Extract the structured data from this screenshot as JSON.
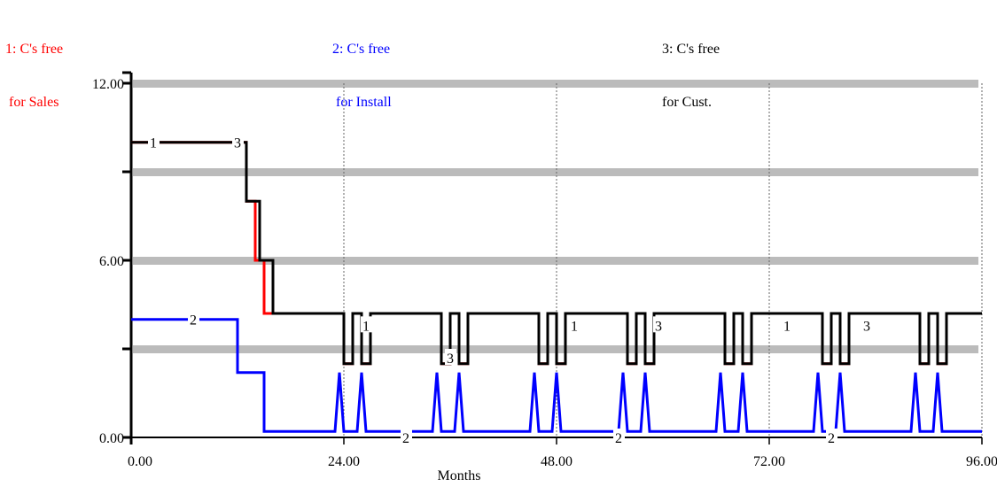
{
  "chart_data": {
    "type": "line",
    "xlabel": "Months",
    "ylabel": "",
    "xlim": [
      0,
      96
    ],
    "ylim": [
      0,
      12
    ],
    "x_ticks": [
      "0.00",
      "24.00",
      "48.00",
      "72.00",
      "96.00"
    ],
    "y_ticks": [
      "0.00",
      "6.00",
      "12.00"
    ],
    "grid": "vertical dashed lines at 24, 48, 72, 96",
    "legend": [
      {
        "id": "1",
        "line1": "1: C's free",
        "line2": " for Sales",
        "color": "#ff0000"
      },
      {
        "id": "2",
        "line1": "2: C's free",
        "line2": " for Install",
        "color": "#0000ff"
      },
      {
        "id": "3",
        "line1": "3: C's free",
        "line2": "for Cust.",
        "color": "#000000"
      }
    ],
    "series": [
      {
        "name": "1: C's free for Sales",
        "marker": "1",
        "color": "#ff0000",
        "points": [
          [
            0,
            10
          ],
          [
            13,
            10
          ],
          [
            13,
            8
          ],
          [
            14,
            8
          ],
          [
            14,
            6
          ],
          [
            15,
            6
          ],
          [
            15,
            4.2
          ],
          [
            24,
            4.2
          ],
          [
            24,
            2.5
          ],
          [
            25,
            2.5
          ],
          [
            25,
            4.2
          ],
          [
            26,
            4.2
          ],
          [
            26,
            2.5
          ],
          [
            27,
            2.5
          ],
          [
            27,
            4.2
          ],
          [
            35,
            4.2
          ],
          [
            35,
            2.5
          ],
          [
            36,
            2.5
          ],
          [
            36,
            4.2
          ],
          [
            37,
            4.2
          ],
          [
            37,
            2.5
          ],
          [
            38,
            2.5
          ],
          [
            38,
            4.2
          ],
          [
            46,
            4.2
          ],
          [
            46,
            2.5
          ],
          [
            47,
            2.5
          ],
          [
            47,
            4.2
          ],
          [
            48,
            4.2
          ],
          [
            48,
            2.5
          ],
          [
            49,
            2.5
          ],
          [
            49,
            4.2
          ],
          [
            56,
            4.2
          ],
          [
            56,
            2.5
          ],
          [
            57,
            2.5
          ],
          [
            57,
            4.2
          ],
          [
            58,
            4.2
          ],
          [
            58,
            2.5
          ],
          [
            59,
            2.5
          ],
          [
            59,
            4.2
          ],
          [
            67,
            4.2
          ],
          [
            67,
            2.5
          ],
          [
            68,
            2.5
          ],
          [
            68,
            4.2
          ],
          [
            69,
            4.2
          ],
          [
            69,
            2.5
          ],
          [
            70,
            2.5
          ],
          [
            70,
            4.2
          ],
          [
            78,
            4.2
          ],
          [
            78,
            2.5
          ],
          [
            79,
            2.5
          ],
          [
            79,
            4.2
          ],
          [
            80,
            4.2
          ],
          [
            80,
            2.5
          ],
          [
            81,
            2.5
          ],
          [
            81,
            4.2
          ],
          [
            89,
            4.2
          ],
          [
            89,
            2.5
          ],
          [
            90,
            2.5
          ],
          [
            90,
            4.2
          ],
          [
            91,
            4.2
          ],
          [
            91,
            2.5
          ],
          [
            92,
            2.5
          ],
          [
            92,
            4.2
          ],
          [
            96,
            4.2
          ]
        ]
      },
      {
        "name": "2: C's free for Install",
        "marker": "2",
        "color": "#0000ff",
        "points": [
          [
            0,
            4
          ],
          [
            12,
            4
          ],
          [
            12,
            2.2
          ],
          [
            15,
            2.2
          ],
          [
            15,
            0.2
          ],
          [
            23,
            0.2
          ],
          [
            23.5,
            2.2
          ],
          [
            24,
            0.2
          ],
          [
            25.5,
            0.2
          ],
          [
            26,
            2.2
          ],
          [
            26.5,
            0.2
          ],
          [
            34,
            0.2
          ],
          [
            34.5,
            2.2
          ],
          [
            35,
            0.2
          ],
          [
            36.5,
            0.2
          ],
          [
            37,
            2.2
          ],
          [
            37.5,
            0.2
          ],
          [
            45,
            0.2
          ],
          [
            45.5,
            2.2
          ],
          [
            46,
            0.2
          ],
          [
            47.5,
            0.2
          ],
          [
            48,
            2.2
          ],
          [
            48.5,
            0.2
          ],
          [
            55,
            0.2
          ],
          [
            55.5,
            2.2
          ],
          [
            56,
            0.2
          ],
          [
            57.5,
            0.2
          ],
          [
            58,
            2.2
          ],
          [
            58.5,
            0.2
          ],
          [
            66,
            0.2
          ],
          [
            66.5,
            2.2
          ],
          [
            67,
            0.2
          ],
          [
            68.5,
            0.2
          ],
          [
            69,
            2.2
          ],
          [
            69.5,
            0.2
          ],
          [
            77,
            0.2
          ],
          [
            77.5,
            2.2
          ],
          [
            78,
            0.2
          ],
          [
            79.5,
            0.2
          ],
          [
            80,
            2.2
          ],
          [
            80.5,
            0.2
          ],
          [
            88,
            0.2
          ],
          [
            88.5,
            2.2
          ],
          [
            89,
            0.2
          ],
          [
            90.5,
            0.2
          ],
          [
            91,
            2.2
          ],
          [
            91.5,
            0.2
          ],
          [
            96,
            0.2
          ]
        ]
      },
      {
        "name": "3: C's free for Cust.",
        "marker": "3",
        "color": "#000000",
        "points": [
          [
            0,
            10
          ],
          [
            13,
            10
          ],
          [
            13,
            8
          ],
          [
            14.5,
            8
          ],
          [
            14.5,
            6
          ],
          [
            16,
            6
          ],
          [
            16,
            4.2
          ],
          [
            24,
            4.2
          ],
          [
            24,
            2.5
          ],
          [
            25,
            2.5
          ],
          [
            25,
            4.2
          ],
          [
            26,
            4.2
          ],
          [
            26,
            2.5
          ],
          [
            27,
            2.5
          ],
          [
            27,
            4.2
          ],
          [
            35,
            4.2
          ],
          [
            35,
            2.5
          ],
          [
            36,
            2.5
          ],
          [
            36,
            4.2
          ],
          [
            37,
            4.2
          ],
          [
            37,
            2.5
          ],
          [
            38,
            2.5
          ],
          [
            38,
            4.2
          ],
          [
            46,
            4.2
          ],
          [
            46,
            2.5
          ],
          [
            47,
            2.5
          ],
          [
            47,
            4.2
          ],
          [
            48,
            4.2
          ],
          [
            48,
            2.5
          ],
          [
            49,
            2.5
          ],
          [
            49,
            4.2
          ],
          [
            56,
            4.2
          ],
          [
            56,
            2.5
          ],
          [
            57,
            2.5
          ],
          [
            57,
            4.2
          ],
          [
            58,
            4.2
          ],
          [
            58,
            2.5
          ],
          [
            59,
            2.5
          ],
          [
            59,
            4.2
          ],
          [
            67,
            4.2
          ],
          [
            67,
            2.5
          ],
          [
            68,
            2.5
          ],
          [
            68,
            4.2
          ],
          [
            69,
            4.2
          ],
          [
            69,
            2.5
          ],
          [
            70,
            2.5
          ],
          [
            70,
            4.2
          ],
          [
            78,
            4.2
          ],
          [
            78,
            2.5
          ],
          [
            79,
            2.5
          ],
          [
            79,
            4.2
          ],
          [
            80,
            4.2
          ],
          [
            80,
            2.5
          ],
          [
            81,
            2.5
          ],
          [
            81,
            4.2
          ],
          [
            89,
            4.2
          ],
          [
            89,
            2.5
          ],
          [
            90,
            2.5
          ],
          [
            90,
            4.2
          ],
          [
            91,
            4.2
          ],
          [
            91,
            2.5
          ],
          [
            92,
            2.5
          ],
          [
            92,
            4.2
          ],
          [
            96,
            4.2
          ]
        ]
      }
    ],
    "marker_labels": [
      {
        "text": "1",
        "x": 2.5,
        "y": 10
      },
      {
        "text": "3",
        "x": 12,
        "y": 10
      },
      {
        "text": "2",
        "x": 7,
        "y": 4
      },
      {
        "text": "1",
        "x": 26.5,
        "y": 3.8
      },
      {
        "text": "2",
        "x": 31,
        "y": 0
      },
      {
        "text": "3",
        "x": 36,
        "y": 2.7
      },
      {
        "text": "1",
        "x": 50,
        "y": 3.8
      },
      {
        "text": "2",
        "x": 55,
        "y": 0
      },
      {
        "text": "3",
        "x": 59.5,
        "y": 3.8
      },
      {
        "text": "1",
        "x": 74,
        "y": 3.8
      },
      {
        "text": "2",
        "x": 79,
        "y": 0
      },
      {
        "text": "3",
        "x": 83,
        "y": 3.8
      }
    ],
    "gray_bands_y": [
      12,
      9,
      6,
      3
    ]
  }
}
